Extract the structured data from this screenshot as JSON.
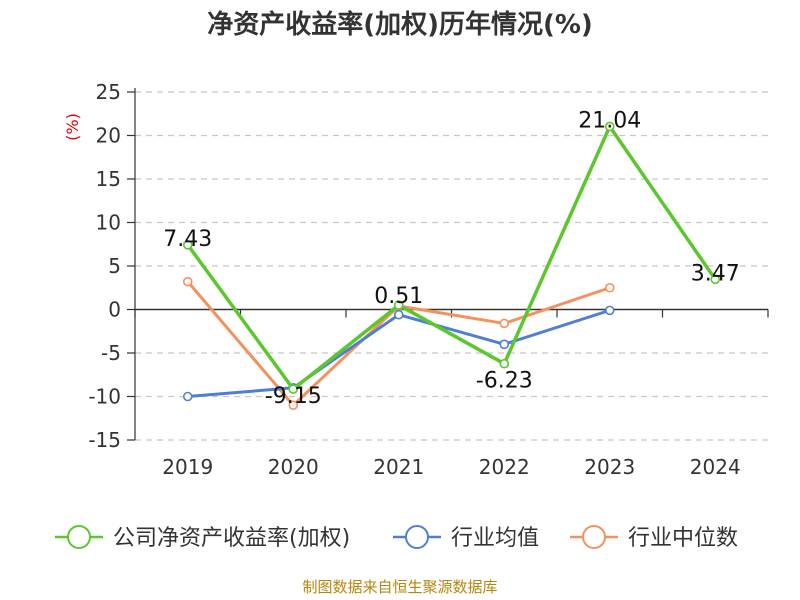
{
  "chart_data": {
    "type": "line",
    "title": "净资产收益率(加权)历年情况(%)",
    "ylabel": "(%)",
    "categories": [
      "2019",
      "2020",
      "2021",
      "2022",
      "2023",
      "2024"
    ],
    "ylim": [
      -15,
      25
    ],
    "yticks": [
      25,
      20,
      15,
      10,
      5,
      0,
      -5,
      -10,
      -15
    ],
    "grid": true,
    "legend_position": "bottom",
    "series": [
      {
        "name": "公司净资产收益率(加权)",
        "color": "#5cc72c",
        "values": [
          7.43,
          -9.15,
          0.51,
          -6.23,
          21.04,
          3.47
        ],
        "labels": [
          "7.43",
          "-9.15",
          "0.51",
          "-6.23",
          "21.04",
          "3.47"
        ]
      },
      {
        "name": "行业均值",
        "color": "#4e7fd8",
        "values": [
          -10.0,
          -9.0,
          -0.6,
          -4.0,
          -0.1,
          null
        ]
      },
      {
        "name": "行业中位数",
        "color": "#f5915a",
        "values": [
          3.2,
          -11.0,
          0.4,
          -1.6,
          2.5,
          null
        ]
      }
    ]
  },
  "source_text": "制图数据来自恒生聚源数据库"
}
